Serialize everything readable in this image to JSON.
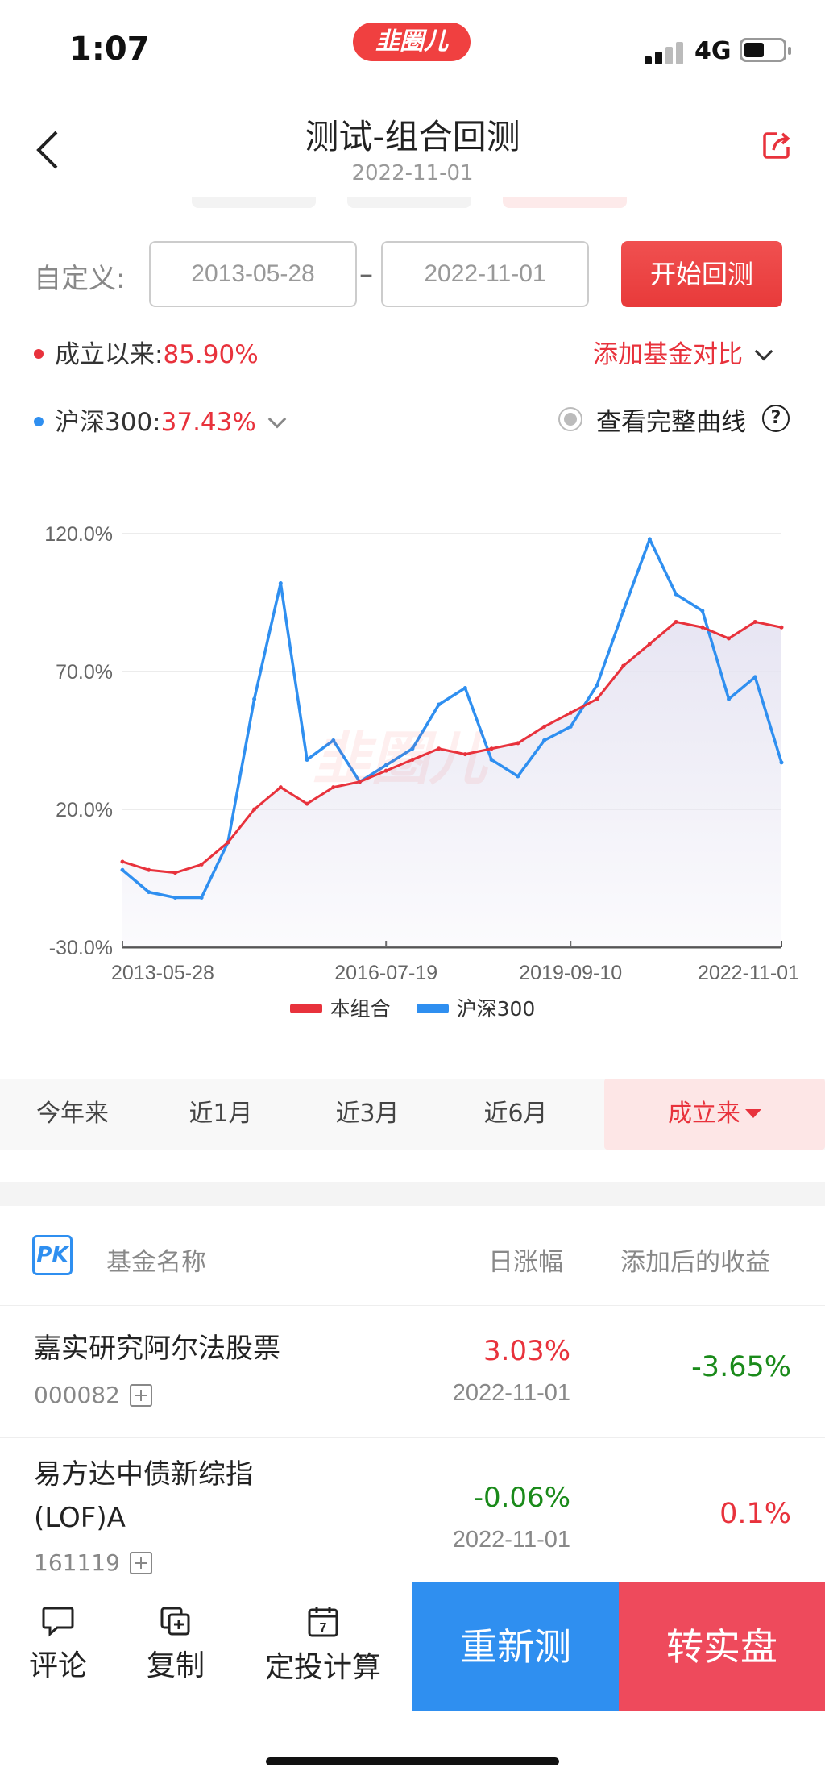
{
  "status": {
    "time": "1:07",
    "network": "4G",
    "logo": "韭圈儿"
  },
  "nav": {
    "title": "测试-组合回测",
    "subtitle": "2022-11-01"
  },
  "range": {
    "label": "自定义:",
    "start_date": "2013-05-28",
    "separator": "–",
    "end_date": "2022-11-01",
    "start_button": "开始回测"
  },
  "stats": {
    "since_inception_label": "成立以来:",
    "since_inception_value": "85.90%",
    "add_compare": "添加基金对比",
    "benchmark_label": "沪深300:",
    "benchmark_value": "37.43%",
    "full_curve": "查看完整曲线",
    "help": "?"
  },
  "chart_data": {
    "type": "line",
    "watermark": "韭圈儿",
    "y_ticks": [
      "120.0%",
      "70.0%",
      "20.0%",
      "-30.0%"
    ],
    "ylim": [
      -30,
      120
    ],
    "x_ticks": [
      "2013-05-28",
      "2016-07-19",
      "2019-09-10",
      "2022-11-01"
    ],
    "x": [
      "2013-05-28",
      "2013-11",
      "2014-05",
      "2014-11",
      "2015-02",
      "2015-04",
      "2015-06",
      "2015-07",
      "2015-09",
      "2016-01",
      "2016-07-19",
      "2017-01",
      "2017-07",
      "2018-01",
      "2018-07",
      "2018-12",
      "2019-04",
      "2019-09-10",
      "2020-01",
      "2020-07",
      "2021-02",
      "2021-07",
      "2022-01",
      "2022-04",
      "2022-07",
      "2022-11-01"
    ],
    "colors": {
      "portfolio": "#e8323c",
      "benchmark": "#2f8ff0",
      "area": "#e6e4f2"
    },
    "series": [
      {
        "name": "本组合",
        "values": [
          1,
          -2,
          -3,
          0,
          8,
          20,
          28,
          22,
          28,
          30,
          34,
          38,
          42,
          40,
          42,
          44,
          50,
          55,
          60,
          72,
          80,
          88,
          86,
          82,
          88,
          86
        ]
      },
      {
        "name": "沪深300",
        "values": [
          -2,
          -10,
          -12,
          -12,
          8,
          60,
          102,
          38,
          45,
          30,
          36,
          42,
          58,
          64,
          38,
          32,
          45,
          50,
          65,
          92,
          118,
          98,
          92,
          60,
          68,
          37
        ]
      }
    ],
    "legend": [
      "本组合",
      "沪深300"
    ]
  },
  "periods": {
    "ytd": "今年来",
    "m1": "近1月",
    "m3": "近3月",
    "m6": "近6月",
    "all": "成立来"
  },
  "table": {
    "pk": "PK",
    "col_name": "基金名称",
    "col_change": "日涨幅",
    "col_gain": "添加后的收益",
    "rows": [
      {
        "name": "嘉实研究阿尔法股票",
        "code": "000082",
        "change": "3.03%",
        "date": "2022-11-01",
        "gain": "-3.65%"
      },
      {
        "name_line1": "易方达中债新综指",
        "name_line2": "(LOF)A",
        "code": "161119",
        "change": "-0.06%",
        "date": "2022-11-01",
        "gain": "0.1%"
      }
    ]
  },
  "toolbar": {
    "comment": "评论",
    "copy": "复制",
    "calc": "定投计算",
    "calendar_day": "7",
    "retest": "重新测",
    "to_real": "转实盘"
  }
}
